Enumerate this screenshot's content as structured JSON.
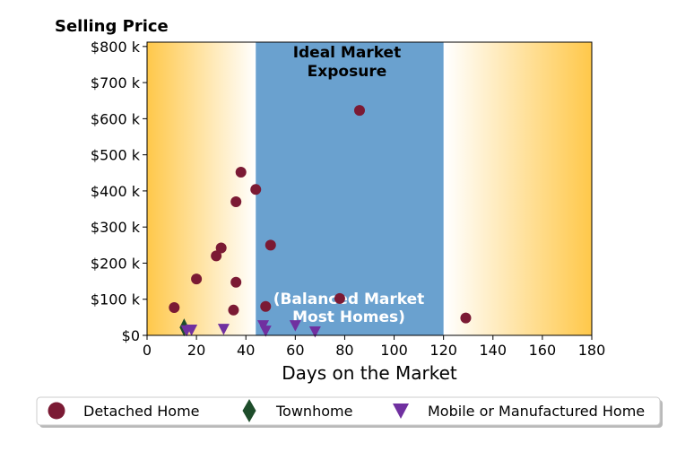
{
  "chart_data": {
    "type": "scatter",
    "title": "Selling Price",
    "xlabel": "Days on the Market",
    "ylabel": "",
    "xlim": [
      0,
      180
    ],
    "ylim": [
      0,
      812000
    ],
    "x_ticks": [
      0,
      20,
      40,
      60,
      80,
      100,
      120,
      140,
      160,
      180
    ],
    "x_tick_labels": [
      "0",
      "20",
      "40",
      "60",
      "80",
      "100",
      "120",
      "140",
      "160",
      "180"
    ],
    "y_ticks": [
      0,
      100000,
      200000,
      300000,
      400000,
      500000,
      600000,
      700000,
      800000
    ],
    "y_tick_labels": [
      "$0",
      "$100 k",
      "$200 k",
      "$300 k",
      "$400 k",
      "$500 k",
      "$600 k",
      "$700 k",
      "$800 k"
    ],
    "grid": false,
    "legend_placement": "bottom-center",
    "background": {
      "gradient_color": "#ffc84a",
      "ideal_band": {
        "x_range": [
          44,
          120
        ],
        "color": "#6aa1cf"
      }
    },
    "annotations": [
      {
        "lines": [
          "Ideal Market",
          "Exposure"
        ],
        "style": "dark"
      },
      {
        "lines": [
          "(Balanced Market",
          "Most Homes)"
        ],
        "style": "light"
      }
    ],
    "series": [
      {
        "name": "Detached Home",
        "marker": "circle",
        "color": "#7b1a34",
        "points": [
          [
            11,
            77000
          ],
          [
            20,
            156000
          ],
          [
            28,
            220000
          ],
          [
            30,
            242000
          ],
          [
            35,
            70000
          ],
          [
            36,
            147000
          ],
          [
            36,
            370000
          ],
          [
            38,
            452000
          ],
          [
            44,
            404000
          ],
          [
            48,
            80000
          ],
          [
            50,
            250000
          ],
          [
            78,
            102000
          ],
          [
            86,
            623000
          ],
          [
            129,
            48000
          ]
        ]
      },
      {
        "name": "Townhome",
        "marker": "diamond",
        "color": "#1e4d2b",
        "points": [
          [
            15,
            22000
          ]
        ]
      },
      {
        "name": "Mobile or Manufactured Home",
        "marker": "triangle-down",
        "color": "#7030a0",
        "points": [
          [
            16,
            13000
          ],
          [
            18,
            15000
          ],
          [
            31,
            17000
          ],
          [
            47,
            27000
          ],
          [
            48,
            12000
          ],
          [
            60,
            27000
          ],
          [
            68,
            10000
          ]
        ]
      }
    ]
  }
}
